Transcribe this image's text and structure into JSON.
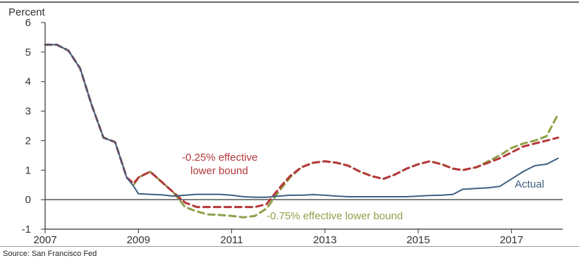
{
  "chart_data": {
    "type": "line",
    "ylabel": "Percent",
    "ylim": [
      -1,
      6
    ],
    "yticks": [
      -1,
      0,
      1,
      2,
      3,
      4,
      5,
      6
    ],
    "xlim": [
      2007,
      2018.1
    ],
    "xticks": [
      "2007",
      "2009",
      "2011",
      "2013",
      "2015",
      "2017"
    ],
    "grid": false,
    "zero_line": true,
    "series": [
      {
        "name": "Actual",
        "color": "#3f5f80",
        "dash": "solid",
        "x": [
          2007.0,
          2007.25,
          2007.5,
          2007.75,
          2008.0,
          2008.25,
          2008.5,
          2008.75,
          2008.9,
          2009.0,
          2009.25,
          2009.5,
          2009.75,
          2010.0,
          2010.25,
          2010.5,
          2010.75,
          2011.0,
          2011.25,
          2011.5,
          2011.75,
          2012.0,
          2012.25,
          2012.5,
          2012.75,
          2013.0,
          2013.25,
          2013.5,
          2013.75,
          2014.0,
          2014.25,
          2014.5,
          2014.75,
          2015.0,
          2015.25,
          2015.5,
          2015.75,
          2015.95,
          2016.25,
          2016.5,
          2016.75,
          2017.0,
          2017.25,
          2017.5,
          2017.75,
          2018.0
        ],
        "y": [
          5.25,
          5.25,
          5.05,
          4.45,
          3.2,
          2.1,
          1.95,
          0.75,
          0.45,
          0.2,
          0.18,
          0.16,
          0.12,
          0.15,
          0.18,
          0.18,
          0.18,
          0.15,
          0.1,
          0.08,
          0.08,
          0.12,
          0.15,
          0.15,
          0.17,
          0.15,
          0.12,
          0.1,
          0.1,
          0.1,
          0.1,
          0.1,
          0.1,
          0.12,
          0.14,
          0.15,
          0.18,
          0.35,
          0.38,
          0.4,
          0.45,
          0.7,
          0.95,
          1.15,
          1.2,
          1.4
        ]
      },
      {
        "name": "-0.25% effective lower bound",
        "color": "#b5373a",
        "dash": "dashed",
        "x": [
          2007.0,
          2007.25,
          2007.5,
          2007.75,
          2008.0,
          2008.25,
          2008.5,
          2008.75,
          2008.9,
          2009.0,
          2009.25,
          2009.5,
          2009.75,
          2010.0,
          2010.25,
          2010.5,
          2010.75,
          2011.0,
          2011.25,
          2011.5,
          2011.75,
          2012.0,
          2012.25,
          2012.5,
          2012.75,
          2013.0,
          2013.25,
          2013.5,
          2013.75,
          2014.0,
          2014.25,
          2014.5,
          2014.75,
          2015.0,
          2015.25,
          2015.5,
          2015.75,
          2015.95,
          2016.25,
          2016.5,
          2016.75,
          2017.0,
          2017.25,
          2017.5,
          2017.75,
          2018.0
        ],
        "y": [
          5.25,
          5.25,
          5.05,
          4.45,
          3.2,
          2.1,
          1.95,
          0.75,
          0.55,
          0.75,
          0.95,
          0.6,
          0.25,
          -0.1,
          -0.25,
          -0.25,
          -0.25,
          -0.25,
          -0.25,
          -0.25,
          -0.15,
          0.35,
          0.8,
          1.1,
          1.25,
          1.3,
          1.25,
          1.15,
          0.95,
          0.8,
          0.7,
          0.85,
          1.05,
          1.2,
          1.3,
          1.2,
          1.05,
          1.0,
          1.1,
          1.25,
          1.4,
          1.6,
          1.8,
          1.9,
          2.0,
          2.1
        ]
      },
      {
        "name": "-0.75% effective lower bound",
        "color": "#8fa04a",
        "dash": "dashed",
        "x": [
          2007.0,
          2007.25,
          2007.5,
          2007.75,
          2008.0,
          2008.25,
          2008.5,
          2008.75,
          2008.9,
          2009.0,
          2009.25,
          2009.5,
          2009.75,
          2010.0,
          2010.25,
          2010.5,
          2010.75,
          2011.0,
          2011.25,
          2011.5,
          2011.75,
          2012.0,
          2012.25,
          2012.5,
          2012.75,
          2013.0,
          2013.25,
          2013.5,
          2013.75,
          2014.0,
          2014.25,
          2014.5,
          2014.75,
          2015.0,
          2015.25,
          2015.5,
          2015.75,
          2015.95,
          2016.25,
          2016.5,
          2016.75,
          2017.0,
          2017.25,
          2017.5,
          2017.75,
          2018.0
        ],
        "y": [
          5.25,
          5.25,
          5.05,
          4.45,
          3.2,
          2.1,
          1.95,
          0.75,
          0.5,
          0.75,
          0.95,
          0.6,
          0.25,
          -0.25,
          -0.4,
          -0.5,
          -0.52,
          -0.55,
          -0.6,
          -0.55,
          -0.3,
          0.25,
          0.75,
          1.1,
          1.25,
          1.3,
          1.25,
          1.15,
          0.95,
          0.8,
          0.7,
          0.85,
          1.05,
          1.2,
          1.3,
          1.2,
          1.05,
          1.0,
          1.1,
          1.3,
          1.5,
          1.75,
          1.9,
          2.0,
          2.15,
          2.9
        ]
      }
    ],
    "annotations": [
      {
        "id": "actual",
        "text": "Actual",
        "color": "#3f5f80"
      },
      {
        "id": "lower025",
        "lines": [
          "-0.25% effective",
          "lower bound"
        ],
        "color": "#b5373a"
      },
      {
        "id": "lower075",
        "text": "-0.75% effective lower bound",
        "color": "#8fa04a"
      }
    ]
  },
  "source": "Source: San Francisco Fed"
}
